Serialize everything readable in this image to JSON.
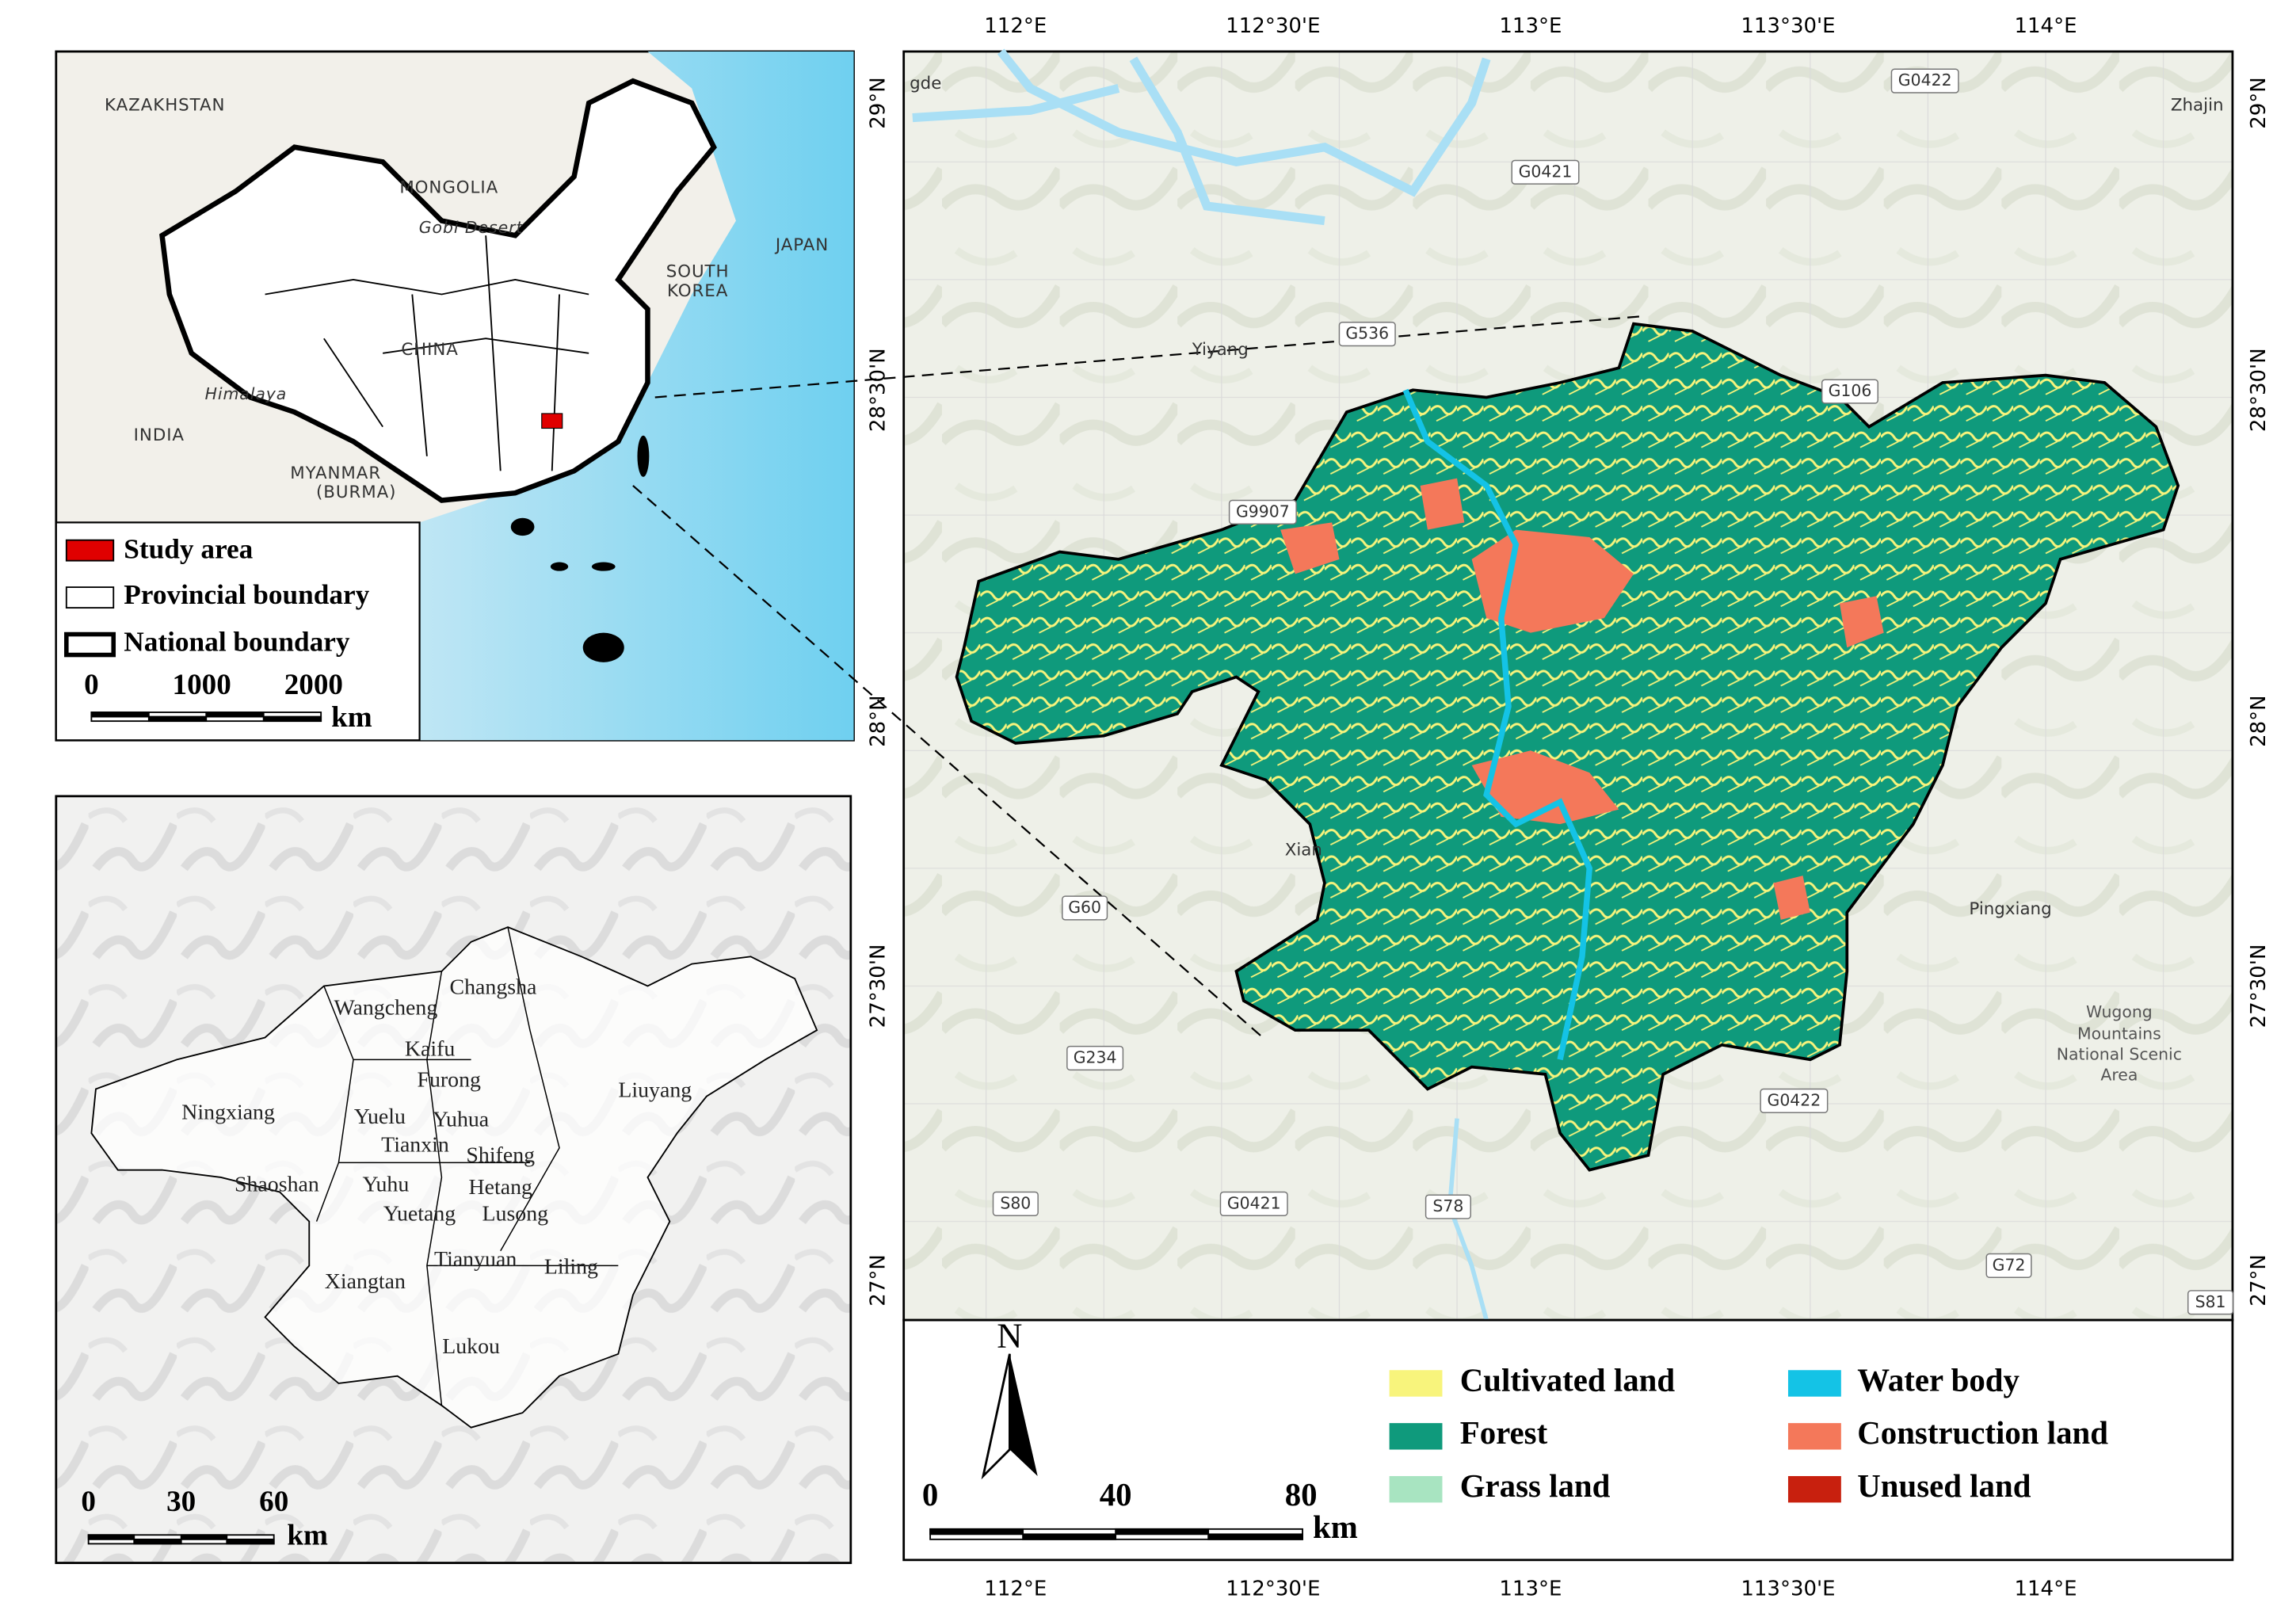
{
  "inset": {
    "labels": [
      "KAZAKHSTAN",
      "MONGOLIA",
      "Gobi Desert",
      "JAPAN",
      "SOUTH",
      "KOREA",
      "CHINA",
      "Himalaya",
      "INDIA",
      "MYANMAR",
      "(BURMA)"
    ],
    "legend": [
      "Study area",
      "Provincial boundary",
      "National boundary"
    ],
    "scale": [
      "0",
      "1000",
      "2000"
    ],
    "scale_unit": "km"
  },
  "counties": {
    "names": [
      "Changsha",
      "Wangcheng",
      "Kaifu",
      "Furong",
      "Ningxiang",
      "Liuyang",
      "Yuelu",
      "Yuhua",
      "Tianxin",
      "Shifeng",
      "Shaoshan",
      "Yuhu",
      "Hetang",
      "Yuetang",
      "Lusong",
      "Tianyuan",
      "Liling",
      "Xiangtan",
      "Lukou"
    ],
    "scale": [
      "0",
      "30",
      "60"
    ],
    "scale_unit": "km"
  },
  "main_map": {
    "lon_labels": [
      "112°E",
      "112°30'E",
      "113°E",
      "113°30'E",
      "114°E"
    ],
    "lat_labels": [
      "29°N",
      "28°30'N",
      "28°N",
      "27°30'N",
      "27°N"
    ],
    "places": [
      "Yiyang",
      "Xian",
      "Pingxiang",
      "Zhajin",
      "gde"
    ],
    "scenic_area": [
      "Wugong",
      "Mountains",
      "National Scenic",
      "Area"
    ],
    "roads": [
      "G0422",
      "G0421",
      "G536",
      "G106",
      "G9907",
      "G60",
      "G234",
      "S80",
      "G0421",
      "S78",
      "G0422",
      "G72",
      "S81"
    ],
    "legend": [
      {
        "name": "Cultivated land",
        "color": "#f8f47c"
      },
      {
        "name": "Forest",
        "color": "#0f9a7c"
      },
      {
        "name": "Grass land",
        "color": "#a8e4c1"
      },
      {
        "name": "Water body",
        "color": "#14c3e6"
      },
      {
        "name": "Construction land",
        "color": "#f4785a"
      },
      {
        "name": "Unused land",
        "color": "#c8200e"
      }
    ],
    "north": "N",
    "scale": [
      "0",
      "40",
      "80"
    ],
    "scale_unit": "km"
  }
}
